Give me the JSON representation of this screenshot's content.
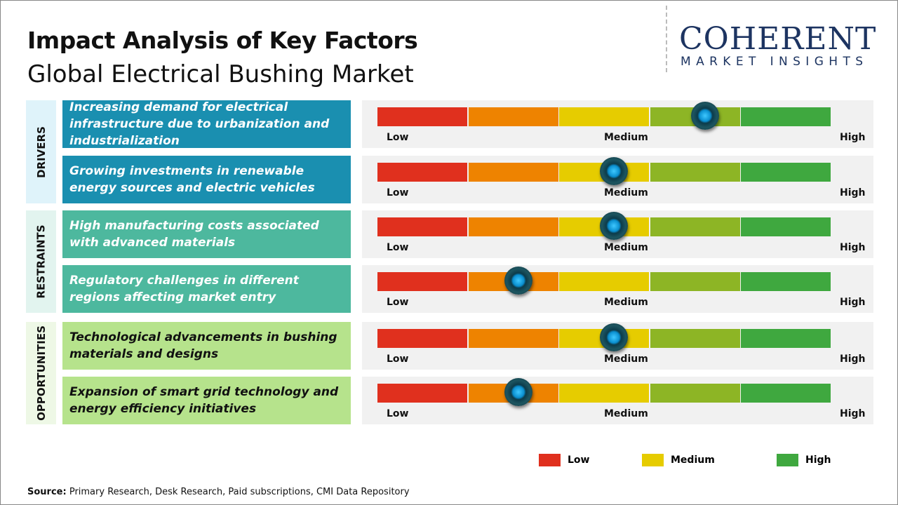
{
  "title": "Impact Analysis of Key Factors",
  "subtitle": "Global Electrical Bushing Market",
  "logo": {
    "line1": "COHERENT",
    "line2": "MARKET INSIGHTS"
  },
  "chart_data": {
    "type": "gauge",
    "scale_labels": [
      "Low",
      "Medium",
      "High"
    ],
    "segment_colors": [
      "#e0301e",
      "#ee8300",
      "#e6cc00",
      "#8db525",
      "#3fa83f"
    ],
    "categories": [
      {
        "name": "DRIVERS",
        "color": "#1a8fb0",
        "bg": "#dff3fa",
        "textColor": "#ffffff",
        "factors": [
          {
            "text": "Increasing demand for electrical infrastructure due to urbanization and industrialization",
            "level": 0.72
          },
          {
            "text": "Growing investments in renewable energy sources and electric vehicles",
            "level": 0.52
          }
        ]
      },
      {
        "name": "RESTRAINTS",
        "color": "#4db89e",
        "bg": "#e2f4ef",
        "textColor": "#ffffff",
        "factors": [
          {
            "text": "High manufacturing costs associated with advanced materials",
            "level": 0.52
          },
          {
            "text": "Regulatory challenges in different regions affecting market entry",
            "level": 0.31
          }
        ]
      },
      {
        "name": "OPPORTUNITIES",
        "color": "#b6e38c",
        "bg": "#eef8e6",
        "textColor": "#111111",
        "factors": [
          {
            "text": "Technological advancements in bushing materials and designs",
            "level": 0.52
          },
          {
            "text": "Expansion of smart grid technology and energy efficiency initiatives",
            "level": 0.31
          }
        ]
      }
    ],
    "legend": [
      {
        "label": "Low",
        "color": "#e0301e"
      },
      {
        "label": "Medium",
        "color": "#e6cc00"
      },
      {
        "label": "High",
        "color": "#3fa83f"
      }
    ]
  },
  "source": {
    "label": "Source:",
    "text": "Primary Research, Desk Research, Paid subscriptions, CMI Data Repository"
  }
}
